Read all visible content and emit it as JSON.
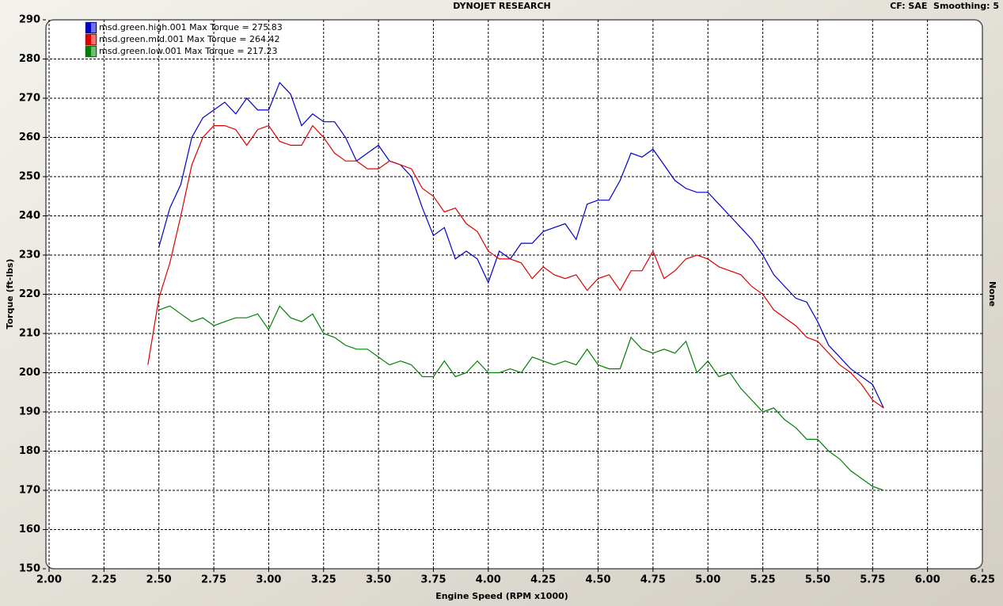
{
  "chart_data": {
    "type": "line",
    "title": "DYNOJET RESEARCH",
    "subtitle": "CF: SAE  Smoothing: 5",
    "side_label": "None",
    "xlabel": "Engine Speed (RPM x1000)",
    "ylabel": "Torque (ft-lbs)",
    "xlim": [
      2,
      6.25
    ],
    "ylim": [
      150,
      290
    ],
    "xticks": [
      {
        "value": 2,
        "label": "2.00"
      },
      {
        "value": 2.25,
        "label": "2.25"
      },
      {
        "value": 2.5,
        "label": "2.50"
      },
      {
        "value": 2.75,
        "label": "2.75"
      },
      {
        "value": 3,
        "label": "3.00"
      },
      {
        "value": 3.25,
        "label": "3.25"
      },
      {
        "value": 3.5,
        "label": "3.50"
      },
      {
        "value": 3.75,
        "label": "3.75"
      },
      {
        "value": 4,
        "label": "4.00"
      },
      {
        "value": 4.25,
        "label": "4.25"
      },
      {
        "value": 4.5,
        "label": "4.50"
      },
      {
        "value": 4.75,
        "label": "4.75"
      },
      {
        "value": 5,
        "label": "5.00"
      },
      {
        "value": 5.25,
        "label": "5.25"
      },
      {
        "value": 5.5,
        "label": "5.50"
      },
      {
        "value": 5.75,
        "label": "5.75"
      },
      {
        "value": 6,
        "label": "6.00"
      },
      {
        "value": 6.25,
        "label": "6.25"
      }
    ],
    "yticks": [
      150,
      160,
      170,
      180,
      190,
      200,
      210,
      220,
      230,
      240,
      250,
      260,
      270,
      280,
      290
    ],
    "grid": true,
    "legend": "top-left",
    "x": [
      2.45,
      2.5,
      2.55,
      2.6,
      2.65,
      2.7,
      2.75,
      2.8,
      2.85,
      2.9,
      2.95,
      3,
      3.05,
      3.1,
      3.15,
      3.2,
      3.25,
      3.3,
      3.35,
      3.4,
      3.45,
      3.5,
      3.55,
      3.6,
      3.65,
      3.7,
      3.75,
      3.8,
      3.85,
      3.9,
      3.95,
      4,
      4.05,
      4.1,
      4.15,
      4.2,
      4.25,
      4.3,
      4.35,
      4.4,
      4.45,
      4.5,
      4.55,
      4.6,
      4.65,
      4.7,
      4.75,
      4.8,
      4.85,
      4.9,
      4.95,
      5,
      5.05,
      5.1,
      5.15,
      5.2,
      5.25,
      5.3,
      5.35,
      5.4,
      5.45,
      5.5,
      5.55,
      5.6,
      5.65,
      5.7,
      5.75,
      5.8
    ],
    "series": [
      {
        "name": "msd.green.high.001 Max Torque = 275.83",
        "color": "#0000cc",
        "values": [
          null,
          232,
          242,
          248,
          260,
          265,
          267,
          269,
          266,
          270,
          267,
          267,
          274,
          271,
          263,
          266,
          264,
          264,
          260,
          254,
          256,
          258,
          254,
          253,
          250,
          242,
          235,
          237,
          229,
          231,
          229,
          223,
          231,
          229,
          233,
          233,
          236,
          237,
          238,
          234,
          243,
          244,
          244,
          249,
          256,
          255,
          257,
          253,
          249,
          247,
          246,
          246,
          243,
          240,
          237,
          234,
          230,
          225,
          222,
          219,
          218,
          213,
          207,
          204,
          201,
          199,
          197,
          191
        ]
      },
      {
        "name": "msd.green.mid.001 Max Torque = 264.42",
        "color": "#e00000",
        "values": [
          202,
          219,
          228,
          240,
          253,
          260,
          263,
          263,
          262,
          258,
          262,
          263,
          259,
          258,
          258,
          263,
          260,
          256,
          254,
          254,
          252,
          252,
          254,
          253,
          252,
          247,
          245,
          241,
          242,
          238,
          236,
          231,
          229,
          229,
          228,
          224,
          227,
          225,
          224,
          225,
          221,
          224,
          225,
          221,
          226,
          226,
          231,
          224,
          226,
          229,
          230,
          229,
          227,
          226,
          225,
          222,
          220,
          216,
          214,
          212,
          209,
          208,
          205,
          202,
          200,
          197,
          193,
          191
        ]
      },
      {
        "name": "msd.green.low.001 Max Torque = 217.23",
        "color": "#008000",
        "values": [
          null,
          216,
          217,
          215,
          213,
          214,
          212,
          213,
          214,
          214,
          215,
          211,
          217,
          214,
          213,
          215,
          210,
          209,
          207,
          206,
          206,
          204,
          202,
          203,
          202,
          199,
          199,
          203,
          199,
          200,
          203,
          200,
          200,
          201,
          200,
          204,
          203,
          202,
          203,
          202,
          206,
          202,
          201,
          201,
          209,
          206,
          205,
          206,
          205,
          208,
          200,
          203,
          199,
          200,
          196,
          193,
          190,
          191,
          188,
          186,
          183,
          183,
          180,
          178,
          175,
          173,
          171,
          170
        ]
      }
    ]
  }
}
